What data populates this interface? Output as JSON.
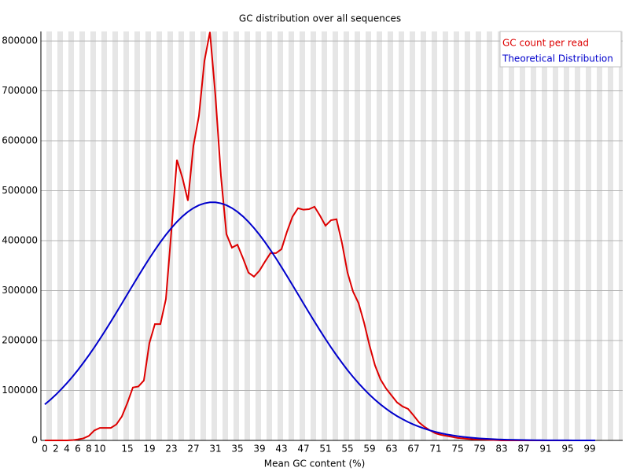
{
  "chart_data": {
    "type": "line",
    "title": "GC distribution over all sequences",
    "x_label": "Mean GC content (%)",
    "categories": [
      "0",
      null,
      "2",
      null,
      "4",
      null,
      "6",
      null,
      "8",
      null,
      "10",
      null,
      null,
      null,
      null,
      "15",
      null,
      null,
      null,
      "19",
      null,
      null,
      null,
      "23",
      null,
      null,
      null,
      "27",
      null,
      null,
      null,
      "31",
      null,
      null,
      null,
      "35",
      null,
      null,
      null,
      "39",
      null,
      null,
      null,
      "43",
      null,
      null,
      null,
      "47",
      null,
      null,
      null,
      "51",
      null,
      null,
      null,
      "55",
      null,
      null,
      null,
      "59",
      null,
      null,
      null,
      "63",
      null,
      null,
      null,
      "67",
      null,
      null,
      null,
      "71",
      null,
      null,
      null,
      "75",
      null,
      null,
      null,
      "79",
      null,
      null,
      null,
      "83",
      null,
      null,
      null,
      "87",
      null,
      null,
      null,
      "91",
      null,
      null,
      null,
      "95",
      null,
      null,
      null,
      "99",
      null
    ],
    "series": [
      {
        "name": "GC count per read",
        "color": "#dd0000",
        "values": [
          0,
          0,
          0,
          0,
          0,
          500,
          2000,
          4000,
          9000,
          20000,
          25000,
          25000,
          25000,
          32000,
          48000,
          75000,
          106000,
          108000,
          120000,
          195000,
          233000,
          233000,
          283000,
          420000,
          562000,
          526000,
          480000,
          590000,
          650000,
          760000,
          818000,
          690000,
          530000,
          413000,
          386000,
          392000,
          365000,
          336000,
          328000,
          340000,
          358000,
          375000,
          375000,
          383000,
          418000,
          448000,
          465000,
          462000,
          463000,
          468000,
          450000,
          430000,
          441000,
          443000,
          395000,
          336000,
          298000,
          275000,
          236000,
          190000,
          150000,
          122000,
          104000,
          90000,
          76000,
          68000,
          63000,
          50000,
          36000,
          27000,
          20000,
          14000,
          11000,
          9000,
          7000,
          5000,
          4000,
          3000,
          2000,
          2000,
          1500,
          1000,
          500,
          0,
          0,
          0,
          0,
          0,
          0,
          0,
          0,
          0,
          0,
          0,
          0,
          0,
          0,
          0,
          0,
          0,
          0
        ]
      },
      {
        "name": "Theoretical Distribution",
        "color": "#0000cc",
        "values": [
          72000,
          81300,
          91500,
          102600,
          114500,
          127200,
          140800,
          155300,
          170500,
          186400,
          203000,
          220200,
          237900,
          256000,
          274300,
          292700,
          311100,
          329300,
          347200,
          364600,
          381300,
          397100,
          411800,
          425500,
          437700,
          448600,
          457800,
          465300,
          471000,
          474800,
          476800,
          476800,
          474800,
          471000,
          465300,
          457800,
          448600,
          437700,
          425500,
          411800,
          397100,
          381300,
          364600,
          347200,
          329300,
          311100,
          292700,
          274300,
          256000,
          237900,
          220200,
          203000,
          186400,
          170500,
          155300,
          140800,
          127200,
          114500,
          102600,
          91500,
          81300,
          72000,
          63500,
          55700,
          48700,
          42500,
          36800,
          31800,
          27400,
          23500,
          20000,
          17000,
          14400,
          12100,
          10200,
          8500,
          7100,
          5900,
          4900,
          4000,
          3300,
          2700,
          2200,
          1700,
          1400,
          1100,
          900,
          700,
          500,
          400,
          300,
          250,
          200,
          150,
          100,
          100,
          50,
          50,
          0,
          0,
          0
        ]
      }
    ],
    "ylim": [
      0,
      819000
    ],
    "yticks": [
      0,
      100000,
      200000,
      300000,
      400000,
      500000,
      600000,
      700000,
      800000
    ],
    "grid": true,
    "legend": "top-right"
  }
}
